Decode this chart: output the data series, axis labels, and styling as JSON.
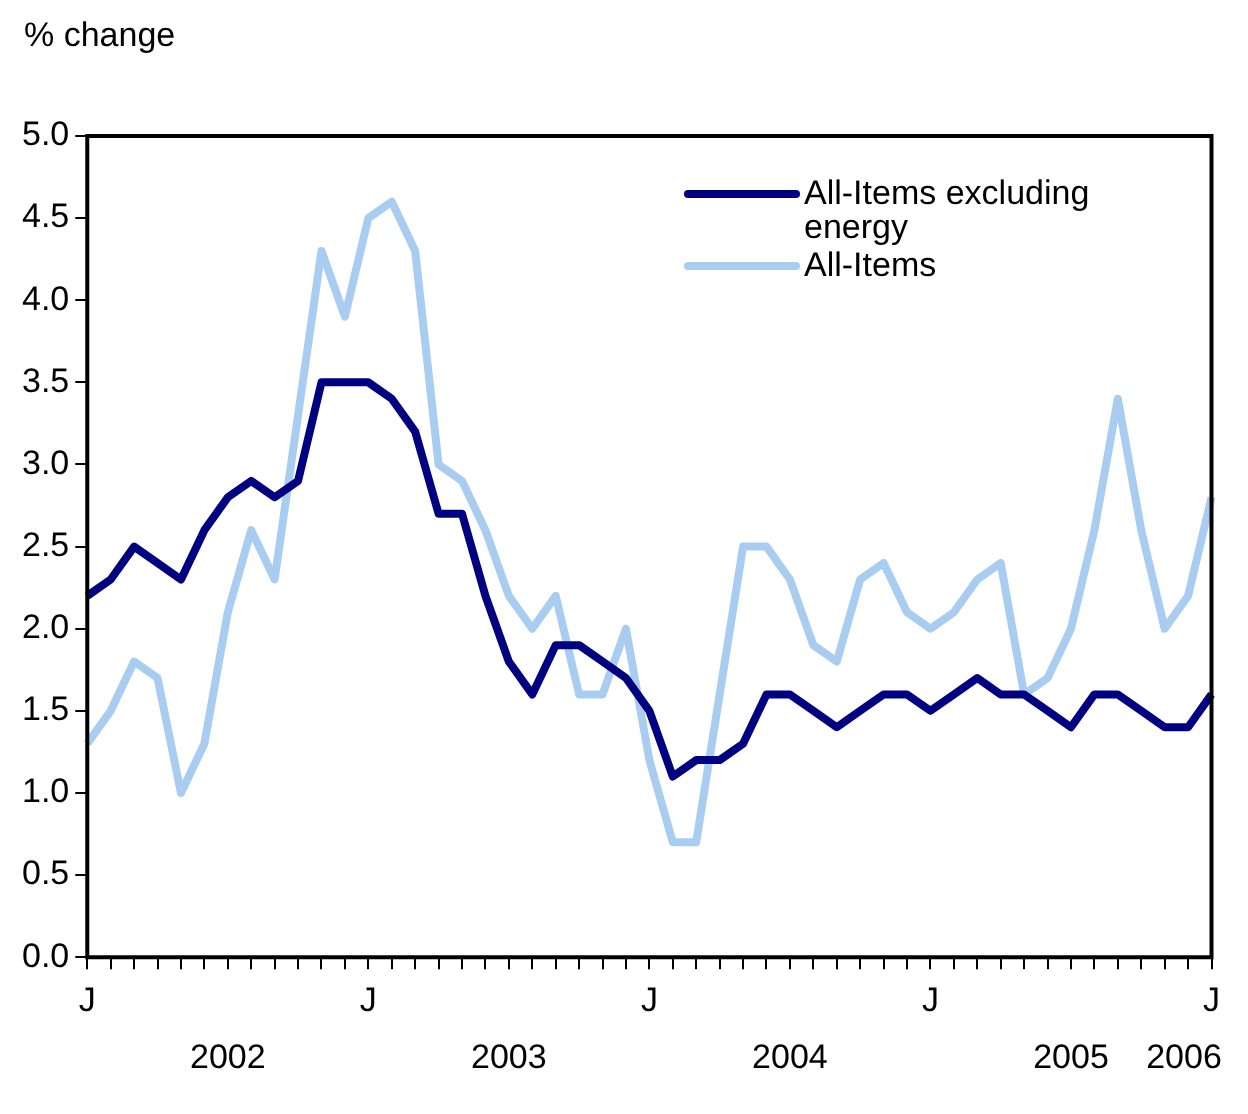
{
  "chart_data": {
    "type": "line",
    "ylabel": "% change",
    "categories": [
      "J",
      null,
      null,
      null,
      null,
      null,
      null,
      null,
      null,
      null,
      null,
      null,
      "J",
      null,
      null,
      null,
      null,
      null,
      null,
      null,
      null,
      null,
      null,
      null,
      "J",
      null,
      null,
      null,
      null,
      null,
      null,
      null,
      null,
      null,
      null,
      null,
      "J",
      null,
      null,
      null,
      null,
      null,
      null,
      null,
      null,
      null,
      null,
      null,
      "J"
    ],
    "series": [
      {
        "name": "All-Items excluding energy",
        "color": "#000080",
        "values": [
          2.2,
          2.3,
          2.5,
          2.4,
          2.3,
          2.6,
          2.8,
          2.9,
          2.8,
          2.9,
          3.5,
          3.5,
          3.5,
          3.4,
          3.2,
          2.7,
          2.7,
          2.2,
          1.8,
          1.6,
          1.9,
          1.9,
          1.8,
          1.7,
          1.5,
          1.1,
          1.2,
          1.2,
          1.3,
          1.6,
          1.6,
          1.5,
          1.4,
          1.5,
          1.6,
          1.6,
          1.5,
          1.6,
          1.7,
          1.6,
          1.6,
          1.5,
          1.4,
          1.6,
          1.6,
          1.5,
          1.4,
          1.4,
          1.6
        ]
      },
      {
        "name": "All-Items",
        "color": "#a8cdf0",
        "values": [
          1.3,
          1.5,
          1.8,
          1.7,
          1.0,
          1.3,
          2.1,
          2.6,
          2.3,
          3.3,
          4.3,
          3.9,
          4.5,
          4.6,
          4.3,
          3.0,
          2.9,
          2.6,
          2.2,
          2.0,
          2.2,
          1.6,
          1.6,
          2.0,
          1.2,
          0.7,
          0.7,
          1.6,
          2.5,
          2.5,
          2.3,
          1.9,
          1.8,
          2.3,
          2.4,
          2.1,
          2.0,
          2.1,
          2.3,
          2.4,
          1.6,
          1.7,
          2.0,
          2.6,
          3.4,
          2.6,
          2.0,
          2.2,
          2.8
        ]
      }
    ],
    "ylim": [
      0,
      5
    ],
    "yticks": [
      {
        "value": 0,
        "label": "0.0"
      },
      0.5,
      {
        "value": 1,
        "label": "1.0"
      },
      1.5,
      {
        "value": 2,
        "label": "2.0"
      },
      2.5,
      {
        "value": 3,
        "label": "3.0"
      },
      3.5,
      {
        "value": 4,
        "label": "4.0"
      },
      4.5,
      {
        "value": 5,
        "label": "5.0"
      }
    ],
    "annotations": [
      "2002",
      "2003",
      "2004",
      "2005",
      "2006"
    ],
    "grid": false,
    "legend": "top right",
    "marker": "none",
    "line_style": "solid"
  }
}
